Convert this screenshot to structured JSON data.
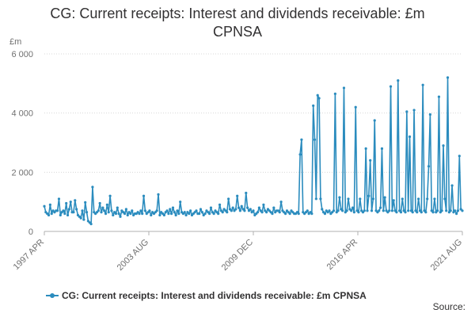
{
  "chart_title_line1": "CG: Current receipts: Interest and dividends receivable: £m",
  "chart_title_line2": "CPNSA",
  "source_label": "Source:",
  "colors": {
    "series": "#2b8cbe",
    "grid": "#d8d8d8",
    "axis": "#b0b0b0"
  },
  "chart_data": {
    "type": "line",
    "title": "CG: Current receipts: Interest and dividends receivable: £m CPNSA",
    "ylabel": "£m",
    "ylim": [
      0,
      6000
    ],
    "yticks": [
      0,
      2000,
      4000,
      6000
    ],
    "ytick_labels": [
      "0",
      "2 000",
      "4 000",
      "6 000"
    ],
    "xticks": [
      "1997 APR",
      "2003 AUG",
      "2009 DEC",
      "2016 APR",
      "2021 AUG"
    ],
    "x_start": "1997-04",
    "x_end": "2021-08",
    "grid": true,
    "legend_position": "bottom",
    "series": [
      {
        "name": "CG: Current receipts: Interest and dividends receivable: £m CPNSA",
        "values": [
          850,
          650,
          600,
          550,
          900,
          600,
          700,
          650,
          700,
          700,
          1100,
          550,
          650,
          700,
          600,
          950,
          550,
          750,
          1000,
          650,
          650,
          1050,
          750,
          550,
          500,
          450,
          700,
          400,
          980,
          650,
          350,
          300,
          250,
          1500,
          650,
          600,
          650,
          700,
          950,
          650,
          800,
          700,
          600,
          900,
          650,
          1200,
          700,
          550,
          650,
          600,
          800,
          600,
          500,
          700,
          650,
          600,
          750,
          550,
          650,
          600,
          700,
          550,
          600,
          600,
          650,
          600,
          700,
          600,
          1200,
          700,
          600,
          650,
          700,
          550,
          650,
          600,
          650,
          700,
          1250,
          550,
          650,
          600,
          550,
          650,
          700,
          600,
          750,
          600,
          800,
          650,
          550,
          700,
          600,
          1000,
          650,
          600,
          650,
          550,
          650,
          600,
          700,
          550,
          600,
          650,
          700,
          600,
          600,
          750,
          650,
          550,
          600,
          700,
          650,
          600,
          800,
          650,
          600,
          700,
          650,
          600,
          900,
          700,
          650,
          750,
          700,
          650,
          1100,
          750,
          700,
          800,
          700,
          750,
          1200,
          800,
          700,
          850,
          750,
          700,
          1300,
          800,
          700,
          750,
          650,
          700,
          550,
          600,
          650,
          800,
          700,
          650,
          900,
          700,
          650,
          750,
          700,
          650,
          600,
          800,
          650,
          700,
          700,
          650,
          1000,
          700,
          650,
          600,
          700,
          650,
          600,
          700,
          650,
          600,
          600,
          650,
          600,
          2600,
          3100,
          650,
          600,
          650,
          700,
          600,
          650,
          600,
          4250,
          3100,
          1100,
          4600,
          4500,
          1100,
          750,
          650,
          600,
          700,
          650,
          700,
          600,
          650,
          700,
          4650,
          650,
          700,
          1150,
          750,
          700,
          4850,
          650,
          700,
          1100,
          750,
          700,
          800,
          650,
          4200,
          700,
          650,
          1100,
          700,
          650,
          700,
          2800,
          700,
          1200,
          2400,
          700,
          1100,
          3750,
          700,
          650,
          700,
          800,
          2800,
          700,
          1150,
          700,
          650,
          700,
          4900,
          700,
          1050,
          700,
          650,
          5100,
          700,
          650,
          1100,
          700,
          650,
          4050,
          700,
          3200,
          700,
          650,
          4100,
          700,
          650,
          1100,
          700,
          650,
          4950,
          700,
          650,
          1100,
          2200,
          3950,
          700,
          650,
          1100,
          650,
          700,
          4550,
          650,
          700,
          2900,
          1100,
          700,
          5200,
          650,
          700,
          1550,
          650,
          700,
          600,
          700,
          2550,
          750,
          700
        ]
      }
    ]
  }
}
